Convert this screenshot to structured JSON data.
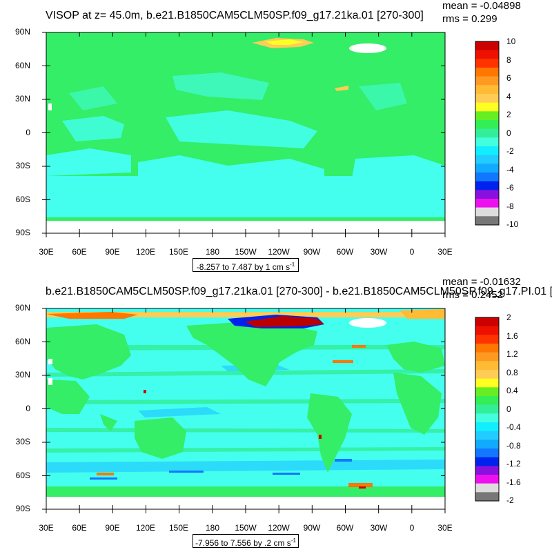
{
  "colors": {
    "ocean_green": "#33ee66",
    "cyan": "#44ffee",
    "light_cyan": "#88ffff",
    "blue": "#00aaff",
    "dark_red": "#bb0000",
    "orange": "#ff9933",
    "yellow": "#ffff33",
    "missing": "#ffffff"
  },
  "top_panel": {
    "title": "VISOP at z=  45.0m, b.e21.B1850CAM5CLM50SP.f09_g17.21ka.01 [270-300]",
    "mean": "mean = -0.04898",
    "rms": "rms = 0.299",
    "range_text": "-8.257 to 7.487 by 1 cm s",
    "range_sup": "-1",
    "colorbar_labels": [
      "10",
      "8",
      "6",
      "4",
      "2",
      "0",
      "-2",
      "-4",
      "-6",
      "-8",
      "-10"
    ]
  },
  "bottom_panel": {
    "title": "b.e21.B1850CAM5CLM50SP.f09_g17.21ka.01 [270-300] - b.e21.B1850CAM5CLM50SP.f09_g17.PI.01 [",
    "mean": "mean = -0.01632",
    "rms": "rms = 0.2452",
    "range_text": "-7.956 to 7.556 by .2 cm s",
    "range_sup": "-1",
    "colorbar_labels": [
      "2",
      "1.6",
      "1.2",
      "0.8",
      "0.4",
      "0",
      "-0.4",
      "-0.8",
      "-1.2",
      "-1.6",
      "-2"
    ]
  },
  "axes": {
    "lat_labels": [
      "90N",
      "60N",
      "30N",
      "0",
      "30S",
      "60S",
      "90S"
    ],
    "lon_labels": [
      "30E",
      "60E",
      "90E",
      "120E",
      "150E",
      "180",
      "150W",
      "120W",
      "90W",
      "60W",
      "30W",
      "0",
      "30E"
    ]
  },
  "colorbar_colors": [
    "#cc0000",
    "#ee1100",
    "#ff3300",
    "#ff7700",
    "#ff9922",
    "#ffbb33",
    "#ffcc55",
    "#ffff22",
    "#66ee22",
    "#33ee55",
    "#33ee99",
    "#44ffdd",
    "#11eeff",
    "#22ccff",
    "#11aaff",
    "#1177ff",
    "#0022ee",
    "#8811dd",
    "#ee11ee",
    "#dddddd",
    "#777777"
  ]
}
